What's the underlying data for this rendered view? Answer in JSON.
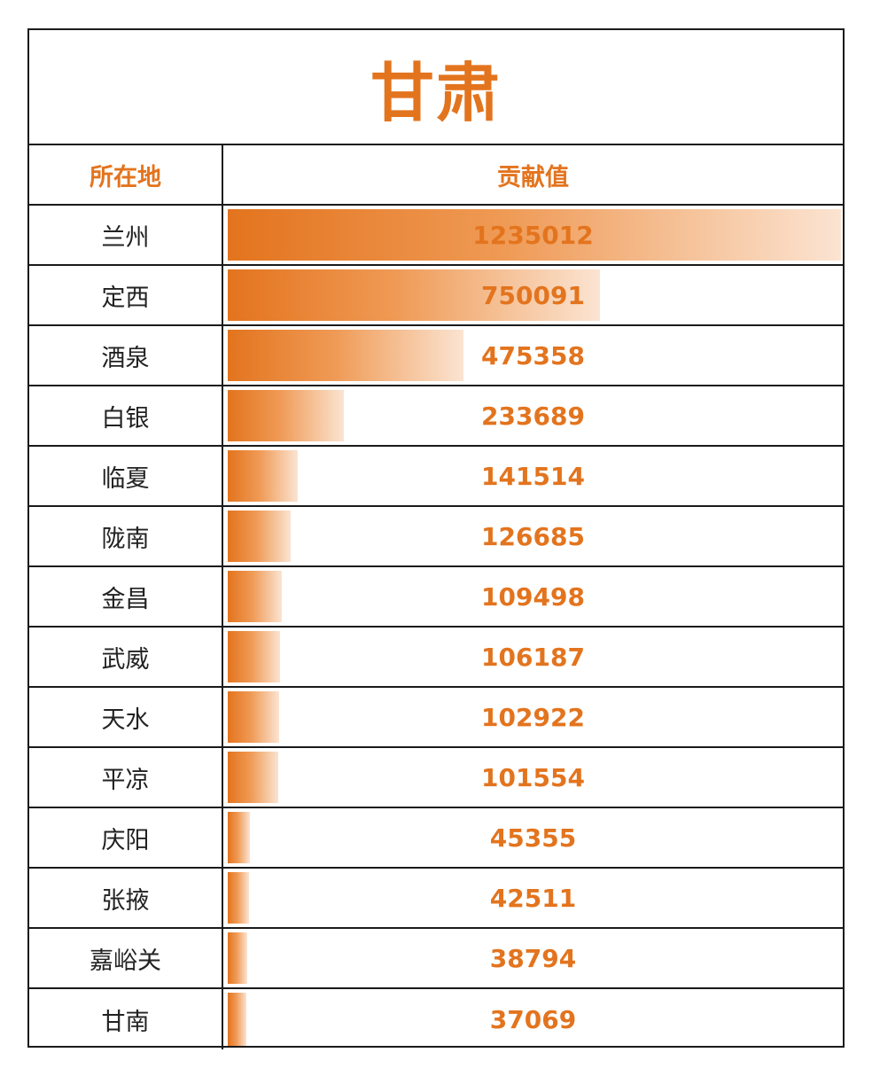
{
  "title": "甘肃",
  "header": {
    "location_label": "所在地",
    "value_label": "贡献值"
  },
  "colors": {
    "accent": "#e3741e",
    "border": "#1a1a1a"
  },
  "chart_data": {
    "type": "table",
    "title": "甘肃",
    "columns": [
      "所在地",
      "贡献值"
    ],
    "categories": [
      "兰州",
      "定西",
      "酒泉",
      "白银",
      "临夏",
      "陇南",
      "金昌",
      "武威",
      "天水",
      "平凉",
      "庆阳",
      "张掖",
      "嘉峪关",
      "甘南"
    ],
    "values": [
      1235012,
      750091,
      475358,
      233689,
      141514,
      126685,
      109498,
      106187,
      102922,
      101554,
      45355,
      42511,
      38794,
      37069
    ],
    "bar_max": 1235012
  }
}
